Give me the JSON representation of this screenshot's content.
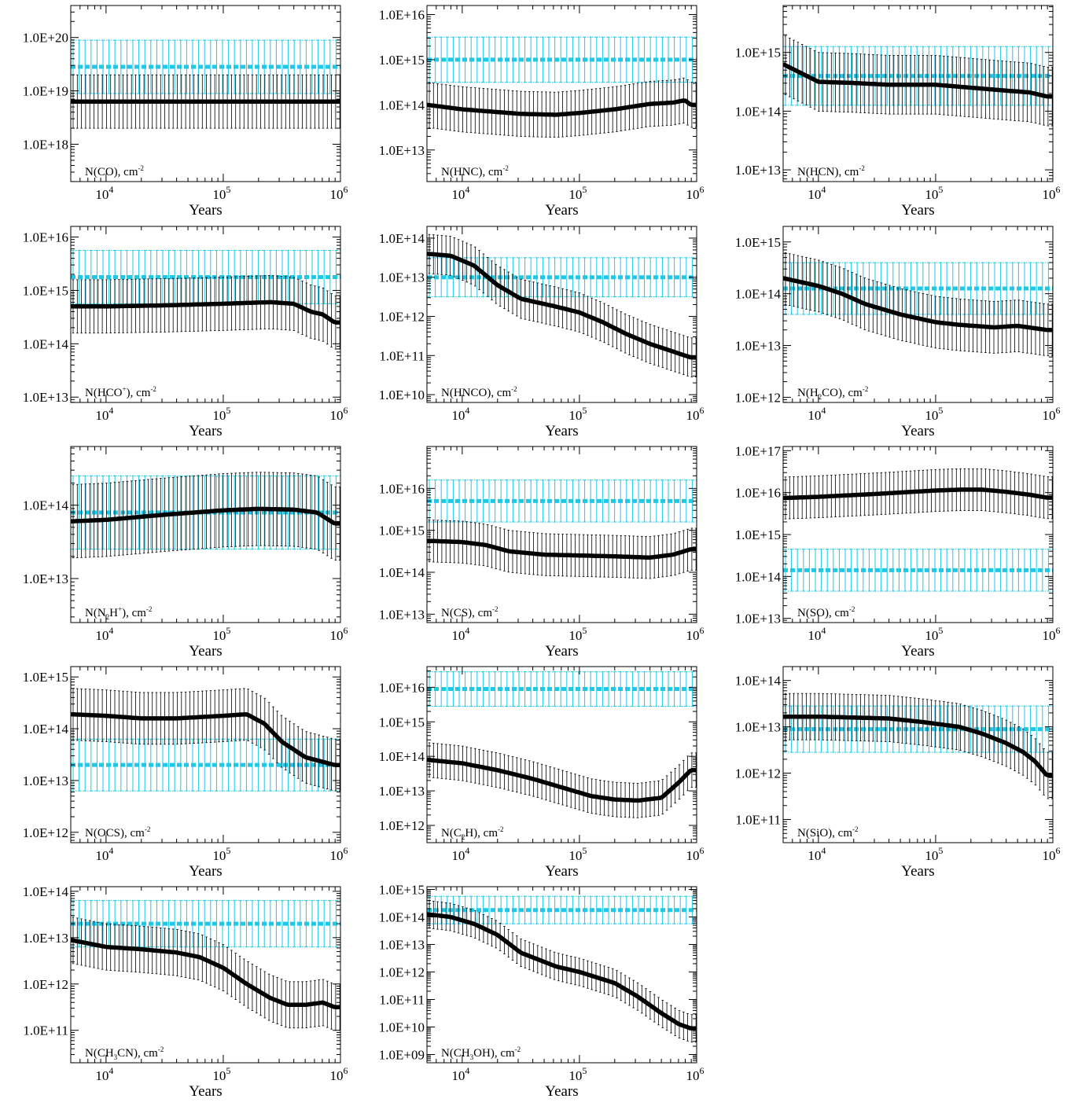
{
  "page": {
    "x_axis_label": "Years",
    "x_tick_labels": [
      "10^4",
      "10^5",
      "10^6"
    ],
    "x_range": [
      5000,
      1000000
    ],
    "x_scale": "log",
    "y_scale": "log",
    "model_color": "#000000",
    "observed_color": "#1ec8e6"
  },
  "chart_data": [
    {
      "type": "line",
      "species": "N(CO), cm^-2",
      "label_parts": [
        {
          "t": "N(CO), cm"
        },
        {
          "t": "-2",
          "sup": true
        }
      ],
      "ylim_exp": [
        17.3,
        20.6
      ],
      "ytick_labels": [
        "1.0E+18",
        "1.0E+19",
        "1.0E+20"
      ],
      "observed": {
        "value_exp": 19.45,
        "err_dex": 0.5
      },
      "model": {
        "x_exp": [
          3.7,
          4,
          4.5,
          5,
          5.5,
          5.95
        ],
        "y_exp": [
          18.8,
          18.8,
          18.8,
          18.8,
          18.8,
          18.8
        ],
        "err_dex": 0.5
      }
    },
    {
      "type": "line",
      "species": "N(HNC), cm^-2",
      "label_parts": [
        {
          "t": "N(HNC), cm"
        },
        {
          "t": "-2",
          "sup": true
        }
      ],
      "ylim_exp": [
        12.3,
        16.2
      ],
      "ytick_labels": [
        "1.0E+13",
        "1.0E+14",
        "1.0E+15",
        "1.0E+16"
      ],
      "observed": {
        "value_exp": 15.0,
        "err_dex": 0.5
      },
      "model": {
        "x_exp": [
          3.7,
          4,
          4.5,
          4.8,
          5,
          5.3,
          5.6,
          5.8,
          5.9,
          5.95
        ],
        "y_exp": [
          14.0,
          13.9,
          13.8,
          13.78,
          13.82,
          13.9,
          14.02,
          14.05,
          14.1,
          14.0
        ],
        "err_dex": 0.5
      }
    },
    {
      "type": "line",
      "species": "N(HCN), cm^-2",
      "label_parts": [
        {
          "t": "N(HCN), cm"
        },
        {
          "t": "-2",
          "sup": true
        }
      ],
      "ylim_exp": [
        12.8,
        15.8
      ],
      "ytick_labels": [
        "1.0E+13",
        "1.0E+14",
        "1.0E+15"
      ],
      "observed": {
        "value_exp": 14.6,
        "err_dex": 0.5
      },
      "model": {
        "x_exp": [
          3.7,
          3.85,
          4,
          4.3,
          4.6,
          5,
          5.3,
          5.6,
          5.8,
          5.95
        ],
        "y_exp": [
          14.8,
          14.65,
          14.5,
          14.48,
          14.45,
          14.45,
          14.4,
          14.35,
          14.32,
          14.25
        ],
        "err_dex": 0.5
      }
    },
    {
      "type": "line",
      "species": "N(HCO+), cm^-2",
      "label_parts": [
        {
          "t": "N(HCO"
        },
        {
          "t": "+",
          "sup": true
        },
        {
          "t": "), cm"
        },
        {
          "t": "-2",
          "sup": true
        }
      ],
      "ylim_exp": [
        12.9,
        16.2
      ],
      "ytick_labels": [
        "1.0E+13",
        "1.0E+14",
        "1.0E+15",
        "1.0E+16"
      ],
      "observed": {
        "value_exp": 15.25,
        "err_dex": 0.5
      },
      "model": {
        "x_exp": [
          3.7,
          4,
          4.5,
          5,
          5.4,
          5.6,
          5.75,
          5.85,
          5.95
        ],
        "y_exp": [
          14.7,
          14.7,
          14.72,
          14.75,
          14.78,
          14.75,
          14.6,
          14.55,
          14.4
        ],
        "err_dex": 0.5
      }
    },
    {
      "type": "line",
      "species": "N(HNCO), cm^-2",
      "label_parts": [
        {
          "t": "N(HNCO), cm"
        },
        {
          "t": "-2",
          "sup": true
        }
      ],
      "ylim_exp": [
        9.8,
        14.3
      ],
      "ytick_labels": [
        "1.0E+10",
        "1.0E+11",
        "1.0E+12",
        "1.0E+13",
        "1.0E+14"
      ],
      "observed": {
        "value_exp": 13.0,
        "err_dex": 0.5
      },
      "model": {
        "x_exp": [
          3.7,
          3.9,
          4.1,
          4.3,
          4.5,
          4.8,
          5.0,
          5.2,
          5.4,
          5.6,
          5.8,
          5.95
        ],
        "y_exp": [
          13.6,
          13.55,
          13.3,
          12.8,
          12.45,
          12.25,
          12.1,
          11.85,
          11.55,
          11.3,
          11.1,
          10.95
        ],
        "err_dex": 0.5
      }
    },
    {
      "type": "line",
      "species": "N(H2CO), cm^-2",
      "label_parts": [
        {
          "t": "N(H"
        },
        {
          "t": "2",
          "sub": true
        },
        {
          "t": "CO), cm"
        },
        {
          "t": "-2",
          "sup": true
        }
      ],
      "ylim_exp": [
        11.9,
        15.3
      ],
      "ytick_labels": [
        "1.0E+12",
        "1.0E+13",
        "1.0E+14",
        "1.0E+15"
      ],
      "observed": {
        "value_exp": 14.1,
        "err_dex": 0.5
      },
      "model": {
        "x_exp": [
          3.7,
          4.0,
          4.2,
          4.4,
          4.7,
          5.0,
          5.2,
          5.5,
          5.7,
          5.95
        ],
        "y_exp": [
          14.3,
          14.15,
          14.0,
          13.8,
          13.6,
          13.45,
          13.4,
          13.35,
          13.38,
          13.3
        ],
        "err_dex": 0.5
      }
    },
    {
      "type": "line",
      "species": "N(N2H+), cm^-2",
      "label_parts": [
        {
          "t": "N(N"
        },
        {
          "t": "2",
          "sub": true
        },
        {
          "t": "H"
        },
        {
          "t": "+",
          "sup": true
        },
        {
          "t": "), cm"
        },
        {
          "t": "-2",
          "sup": true
        }
      ],
      "ylim_exp": [
        12.4,
        14.8
      ],
      "ytick_labels": [
        "1.0E+13",
        "1.0E+14"
      ],
      "observed": {
        "value_exp": 13.9,
        "err_dex": 0.5
      },
      "model": {
        "x_exp": [
          3.7,
          4,
          4.5,
          5,
          5.3,
          5.6,
          5.8,
          5.95
        ],
        "y_exp": [
          13.78,
          13.8,
          13.87,
          13.93,
          13.95,
          13.94,
          13.9,
          13.75
        ],
        "err_dex": 0.5
      }
    },
    {
      "type": "line",
      "species": "N(CS), cm^-2",
      "label_parts": [
        {
          "t": "N(CS), cm"
        },
        {
          "t": "-2",
          "sup": true
        }
      ],
      "ylim_exp": [
        12.8,
        17.0
      ],
      "ytick_labels": [
        "1.0E+13",
        "1.0E+14",
        "1.0E+15",
        "1.0E+16"
      ],
      "observed": {
        "value_exp": 15.7,
        "err_dex": 0.5
      },
      "model": {
        "x_exp": [
          3.7,
          4,
          4.2,
          4.4,
          4.7,
          5,
          5.3,
          5.6,
          5.8,
          5.95
        ],
        "y_exp": [
          14.75,
          14.72,
          14.65,
          14.5,
          14.42,
          14.4,
          14.38,
          14.35,
          14.42,
          14.55
        ],
        "err_dex": 0.5
      }
    },
    {
      "type": "line",
      "species": "N(SO), cm^-2",
      "label_parts": [
        {
          "t": "N(SO), cm"
        },
        {
          "t": "-2",
          "sup": true
        }
      ],
      "ylim_exp": [
        12.9,
        17.1
      ],
      "ytick_labels": [
        "1.0E+13",
        "1.0E+14",
        "1.0E+15",
        "1.0E+16",
        "1.0E+17"
      ],
      "observed": {
        "value_exp": 14.15,
        "err_dex": 0.5
      },
      "model": {
        "x_exp": [
          3.7,
          4,
          4.5,
          5,
          5.2,
          5.4,
          5.6,
          5.8,
          5.95
        ],
        "y_exp": [
          15.87,
          15.9,
          15.97,
          16.05,
          16.07,
          16.07,
          16.02,
          15.95,
          15.88
        ],
        "err_dex": 0.5
      }
    },
    {
      "type": "line",
      "species": "N(OCS), cm^-2",
      "label_parts": [
        {
          "t": "N(OCS), cm"
        },
        {
          "t": "-2",
          "sup": true
        }
      ],
      "ylim_exp": [
        11.8,
        15.2
      ],
      "ytick_labels": [
        "1.0E+12",
        "1.0E+13",
        "1.0E+14",
        "1.0E+15"
      ],
      "observed": {
        "value_exp": 13.3,
        "err_dex": 0.5
      },
      "model": {
        "x_exp": [
          3.7,
          4,
          4.3,
          4.6,
          5,
          5.2,
          5.35,
          5.5,
          5.7,
          5.95
        ],
        "y_exp": [
          14.28,
          14.25,
          14.2,
          14.2,
          14.25,
          14.28,
          14.1,
          13.75,
          13.45,
          13.3
        ],
        "err_dex": 0.5
      }
    },
    {
      "type": "line",
      "species": "N(C2H), cm^-2",
      "label_parts": [
        {
          "t": "N(C"
        },
        {
          "t": "2",
          "sub": true
        },
        {
          "t": "H), cm"
        },
        {
          "t": "-2",
          "sup": true
        }
      ],
      "ylim_exp": [
        11.5,
        16.6
      ],
      "ytick_labels": [
        "1.0E+12",
        "1.0E+13",
        "1.0E+14",
        "1.0E+15",
        "1.0E+16"
      ],
      "observed": {
        "value_exp": 15.95,
        "err_dex": 0.5
      },
      "model": {
        "x_exp": [
          3.7,
          4,
          4.3,
          4.6,
          4.9,
          5.1,
          5.3,
          5.5,
          5.7,
          5.85,
          5.95
        ],
        "y_exp": [
          13.9,
          13.8,
          13.6,
          13.35,
          13.05,
          12.85,
          12.75,
          12.72,
          12.8,
          13.25,
          13.6
        ],
        "err_dex": 0.5
      }
    },
    {
      "type": "line",
      "species": "N(SiO), cm^-2",
      "label_parts": [
        {
          "t": "N(SiO), cm"
        },
        {
          "t": "-2",
          "sup": true
        }
      ],
      "ylim_exp": [
        10.5,
        14.3
      ],
      "ytick_labels": [
        "1.0E+11",
        "1.0E+12",
        "1.0E+13",
        "1.0E+14"
      ],
      "observed": {
        "value_exp": 12.95,
        "err_dex": 0.5
      },
      "model": {
        "x_exp": [
          3.7,
          4,
          4.3,
          4.6,
          4.9,
          5.2,
          5.4,
          5.6,
          5.75,
          5.85,
          5.95
        ],
        "y_exp": [
          13.22,
          13.22,
          13.2,
          13.18,
          13.1,
          13.0,
          12.85,
          12.65,
          12.45,
          12.25,
          11.95
        ],
        "err_dex": 0.5
      }
    },
    {
      "type": "line",
      "species": "N(CH3CN), cm^-2",
      "label_parts": [
        {
          "t": "N(CH"
        },
        {
          "t": "3",
          "sub": true
        },
        {
          "t": "CN), cm"
        },
        {
          "t": "-2",
          "sup": true
        }
      ],
      "ylim_exp": [
        10.3,
        14.1
      ],
      "ytick_labels": [
        "1.0E+11",
        "1.0E+12",
        "1.0E+13",
        "1.0E+14"
      ],
      "observed": {
        "value_exp": 13.3,
        "err_dex": 0.5
      },
      "model": {
        "x_exp": [
          3.7,
          4,
          4.3,
          4.6,
          4.8,
          5,
          5.2,
          5.4,
          5.55,
          5.7,
          5.85,
          5.95
        ],
        "y_exp": [
          12.95,
          12.8,
          12.75,
          12.68,
          12.58,
          12.35,
          12.0,
          11.7,
          11.55,
          11.55,
          11.6,
          11.5
        ],
        "err_dex": 0.5
      }
    },
    {
      "type": "line",
      "species": "N(CH3OH), cm^-2",
      "label_parts": [
        {
          "t": "N(CH"
        },
        {
          "t": "3",
          "sub": true
        },
        {
          "t": "OH), cm"
        },
        {
          "t": "-2",
          "sup": true
        }
      ],
      "ylim_exp": [
        8.7,
        15.1
      ],
      "ytick_labels": [
        "1.0E+09",
        "1.0E+10",
        "1.0E+11",
        "1.0E+12",
        "1.0E+13",
        "1.0E+14",
        "1.0E+15"
      ],
      "observed": {
        "value_exp": 14.25,
        "err_dex": 0.5
      },
      "model": {
        "x_exp": [
          3.7,
          3.9,
          4.1,
          4.3,
          4.5,
          4.8,
          5,
          5.3,
          5.5,
          5.7,
          5.85,
          5.95
        ],
        "y_exp": [
          14.1,
          14.0,
          13.75,
          13.35,
          12.7,
          12.2,
          12.0,
          11.6,
          11.1,
          10.5,
          10.1,
          9.95
        ],
        "err_dex": 0.5
      }
    }
  ]
}
